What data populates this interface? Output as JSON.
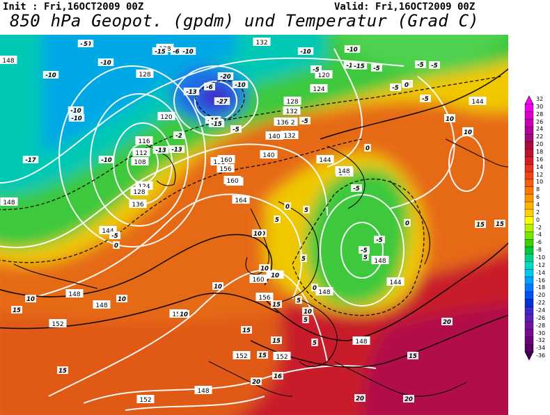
{
  "header": {
    "init": "Init : Fri,16OCT2009 00Z",
    "valid": "Valid: Fri,16OCT2009 00Z",
    "title": "850 hPa Geopot. (gpdm) und Temperatur (Grad C)"
  },
  "colorbar": {
    "labels": [
      "32",
      "30",
      "28",
      "26",
      "24",
      "22",
      "20",
      "18",
      "16",
      "14",
      "12",
      "10",
      "8",
      "6",
      "4",
      "2",
      "0",
      "-2",
      "-4",
      "-6",
      "-8",
      "-10",
      "-12",
      "-14",
      "-16",
      "-18",
      "-20",
      "-22",
      "-24",
      "-26",
      "-28",
      "-30",
      "-32",
      "-34",
      "-36"
    ],
    "colors": [
      "#ff00ff",
      "#ef00e6",
      "#dc00cd",
      "#c600b4",
      "#b4009b",
      "#a00a78",
      "#aa0a3c",
      "#be1432",
      "#d21e28",
      "#e6321e",
      "#f04614",
      "#f55f0a",
      "#fa7800",
      "#fa9600",
      "#ffb400",
      "#ffd200",
      "#ffff00",
      "#b4f000",
      "#78e600",
      "#3cd200",
      "#00c83c",
      "#00d28c",
      "#00dcc8",
      "#00c8f0",
      "#00a0ff",
      "#0078ff",
      "#0050f0",
      "#0032d2",
      "#3c28c8",
      "#5a1eb4",
      "#6e14a0",
      "#780a8c",
      "#6e0078",
      "#5a0064",
      "#460050"
    ]
  },
  "map": {
    "height_labels": [
      "148",
      "128",
      "132",
      "128",
      "120",
      "124",
      "128",
      "132",
      "116",
      "112",
      "108",
      "120",
      "124",
      "128",
      "136",
      "132",
      "140",
      "144",
      "148",
      "156",
      "152",
      "160",
      "164",
      "144",
      "140",
      "136",
      "132",
      "144",
      "148",
      "152",
      "148",
      "148",
      "152",
      "156",
      "160",
      "160",
      "160",
      "148",
      "144",
      "148",
      "152",
      "152",
      "152",
      "152",
      "148",
      "148",
      "144"
    ],
    "temp_labels": [
      "-10",
      "-10",
      "-10",
      "-15",
      "-20",
      "-15",
      "-10",
      "-10",
      "-5",
      "-10",
      "-15",
      "-5",
      "-10",
      "-10",
      "-5",
      "-5",
      "-5",
      "-5",
      "-5",
      "0",
      "-13",
      "-27",
      "-5",
      "-15",
      "-10",
      "-6",
      "-10",
      "-6",
      "-10",
      "-13",
      "-17",
      "-13",
      "-2",
      "0",
      "-5",
      "0",
      "5",
      "10",
      "5",
      "10",
      "10",
      "5",
      "10",
      "10",
      "15",
      "10",
      "15",
      "15",
      "15",
      "15",
      "15",
      "15",
      "20",
      "20",
      "20",
      "0",
      "-5",
      "0",
      "-5",
      "-5",
      "5",
      "0",
      "5",
      "10",
      "5",
      "10",
      "10",
      "15",
      "15",
      "16",
      "20",
      "-5",
      "-5",
      "-6",
      "10",
      "10",
      "10",
      "10",
      "5",
      "5"
    ]
  }
}
